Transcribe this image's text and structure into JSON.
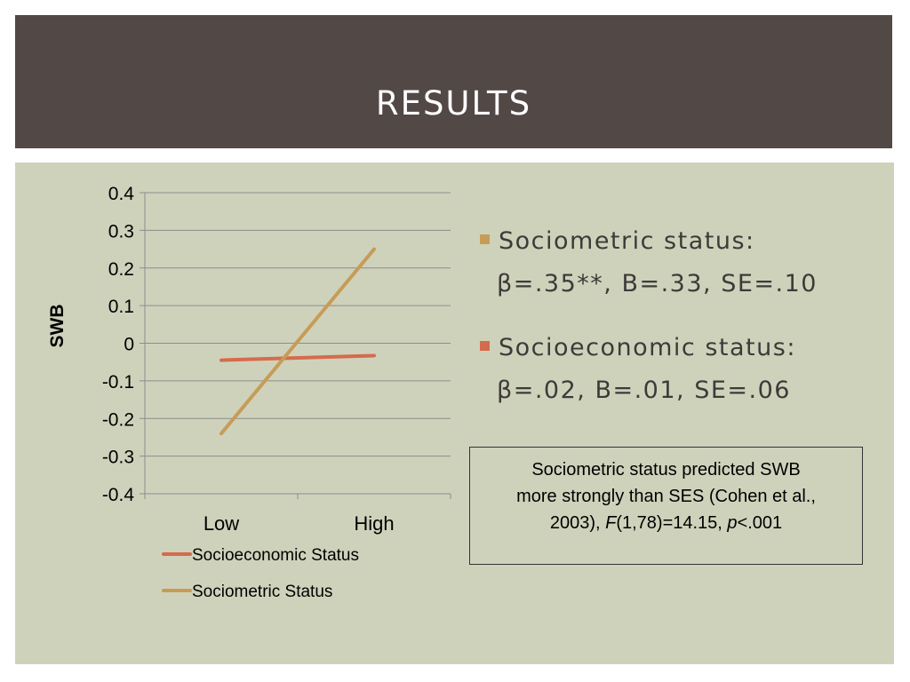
{
  "slide": {
    "title": "RESULTS"
  },
  "chart_data": {
    "type": "line",
    "categories": [
      "Low",
      "High"
    ],
    "series": [
      {
        "name": "Socioeconomic Status",
        "values": [
          -0.045,
          -0.033
        ],
        "color": "#d56b4d"
      },
      {
        "name": "Sociometric Status",
        "values": [
          -0.24,
          0.25
        ],
        "color": "#c69c57"
      }
    ],
    "ylabel": "SWB",
    "xlabel": "",
    "ylim": [
      -0.4,
      0.4
    ],
    "yticks": [
      "0.4",
      "0.3",
      "0.2",
      "0.1",
      "0",
      "-0.1",
      "-0.2",
      "-0.3",
      "-0.4"
    ],
    "grid": true,
    "legend": "bottom"
  },
  "bullets": [
    {
      "label": "Sociometric status:",
      "stats": "β=.35**, B=.33, SE=.10",
      "color": "#c69c57"
    },
    {
      "label": "Socioeconomic status:",
      "stats": "β=.02, B=.01, SE=.06",
      "color": "#d56b4d"
    }
  ],
  "note": {
    "line1": "Sociometric status predicted SWB",
    "line2": "more strongly than SES (Cohen et al.,",
    "line3_year": "2003), ",
    "stat_letter": "F",
    "stat_rest": "(1,78)=14.15, ",
    "p_letter": "p",
    "p_rest": "<.001"
  },
  "colors": {
    "header_bg": "#524846",
    "content_bg": "#cfd2bb",
    "socioeconomic": "#d56b4d",
    "sociometric": "#c69c57"
  }
}
